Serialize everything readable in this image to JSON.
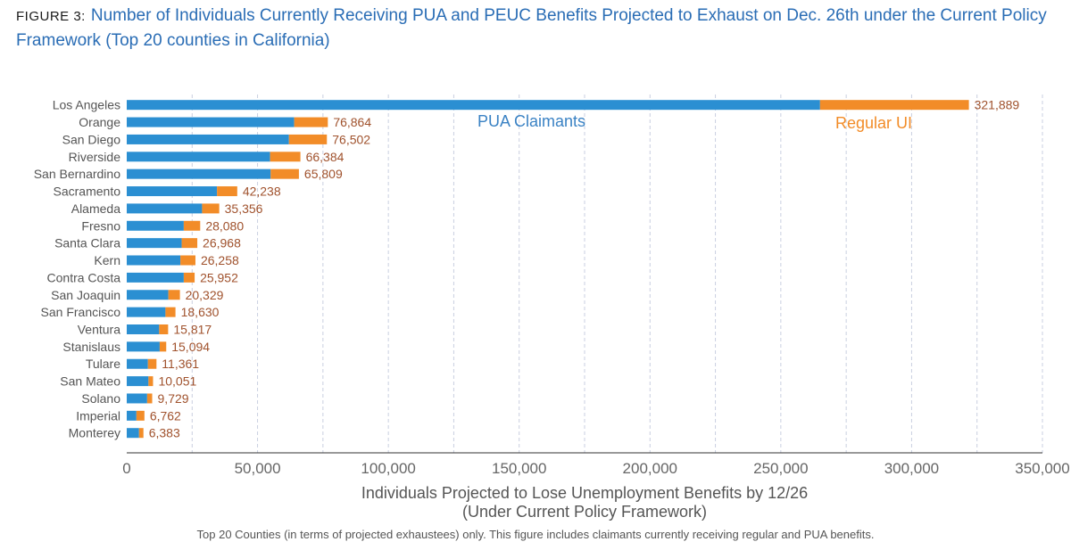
{
  "figure": {
    "label": "FIGURE 3:",
    "title": "Number of Individuals Currently Receiving PUA and PEUC Benefits Projected to Exhaust on Dec. 26th under the Current Policy Framework (Top 20 counties in California)"
  },
  "footnote": "Top 20 Counties (in terms of projected exhaustees) only. This figure includes claimants currently receiving regular and PUA benefits.",
  "colors": {
    "pua": "#2b8fd2",
    "regular": "#f28c28",
    "total_label": "#a0522d",
    "title": "#2a6db5"
  },
  "chart_data": {
    "type": "bar",
    "orientation": "horizontal",
    "stacked": true,
    "xlabel": "Individuals Projected to Lose Unemployment Benefits by 12/26",
    "xlabel2": "(Under Current Policy Framework)",
    "xlim": [
      0,
      350000
    ],
    "xticks": [
      0,
      50000,
      100000,
      150000,
      200000,
      250000,
      300000,
      350000
    ],
    "xtick_labels": [
      "0",
      "50,000",
      "100,000",
      "150,000",
      "200,000",
      "250,000",
      "300,000",
      "350,000"
    ],
    "grid": "vertical dashed",
    "categories": [
      "Los Angeles",
      "Orange",
      "San Diego",
      "Riverside",
      "San Bernardino",
      "Sacramento",
      "Alameda",
      "Fresno",
      "Santa Clara",
      "Kern",
      "Contra Costa",
      "San Joaquin",
      "San Francisco",
      "Ventura",
      "Stanislaus",
      "Tulare",
      "San Mateo",
      "Solano",
      "Imperial",
      "Monterey"
    ],
    "series": [
      {
        "name": "PUA Claimants",
        "values": [
          265000,
          64000,
          62000,
          54800,
          55000,
          34500,
          28800,
          21800,
          21000,
          20500,
          21800,
          15900,
          14800,
          12400,
          12600,
          8100,
          8300,
          7800,
          3700,
          4700
        ]
      },
      {
        "name": "Regular UI",
        "values": [
          56889,
          12864,
          14502,
          11584,
          10809,
          7738,
          6556,
          6280,
          5968,
          5758,
          4152,
          4429,
          3830,
          3417,
          2494,
          3261,
          1751,
          1929,
          3062,
          1683
        ]
      }
    ],
    "totals": [
      321889,
      76864,
      76502,
      66384,
      65809,
      42238,
      35356,
      28080,
      26968,
      26258,
      25952,
      20329,
      18630,
      15817,
      15094,
      11361,
      10051,
      9729,
      6762,
      6383
    ],
    "total_labels": [
      "321,889",
      "76,864",
      "76,502",
      "66,384",
      "65,809",
      "42,238",
      "35,356",
      "28,080",
      "26,968",
      "26,258",
      "25,952",
      "20,329",
      "18,630",
      "15,817",
      "15,094",
      "11,361",
      "10,051",
      "9,729",
      "6,762",
      "6,383"
    ]
  }
}
